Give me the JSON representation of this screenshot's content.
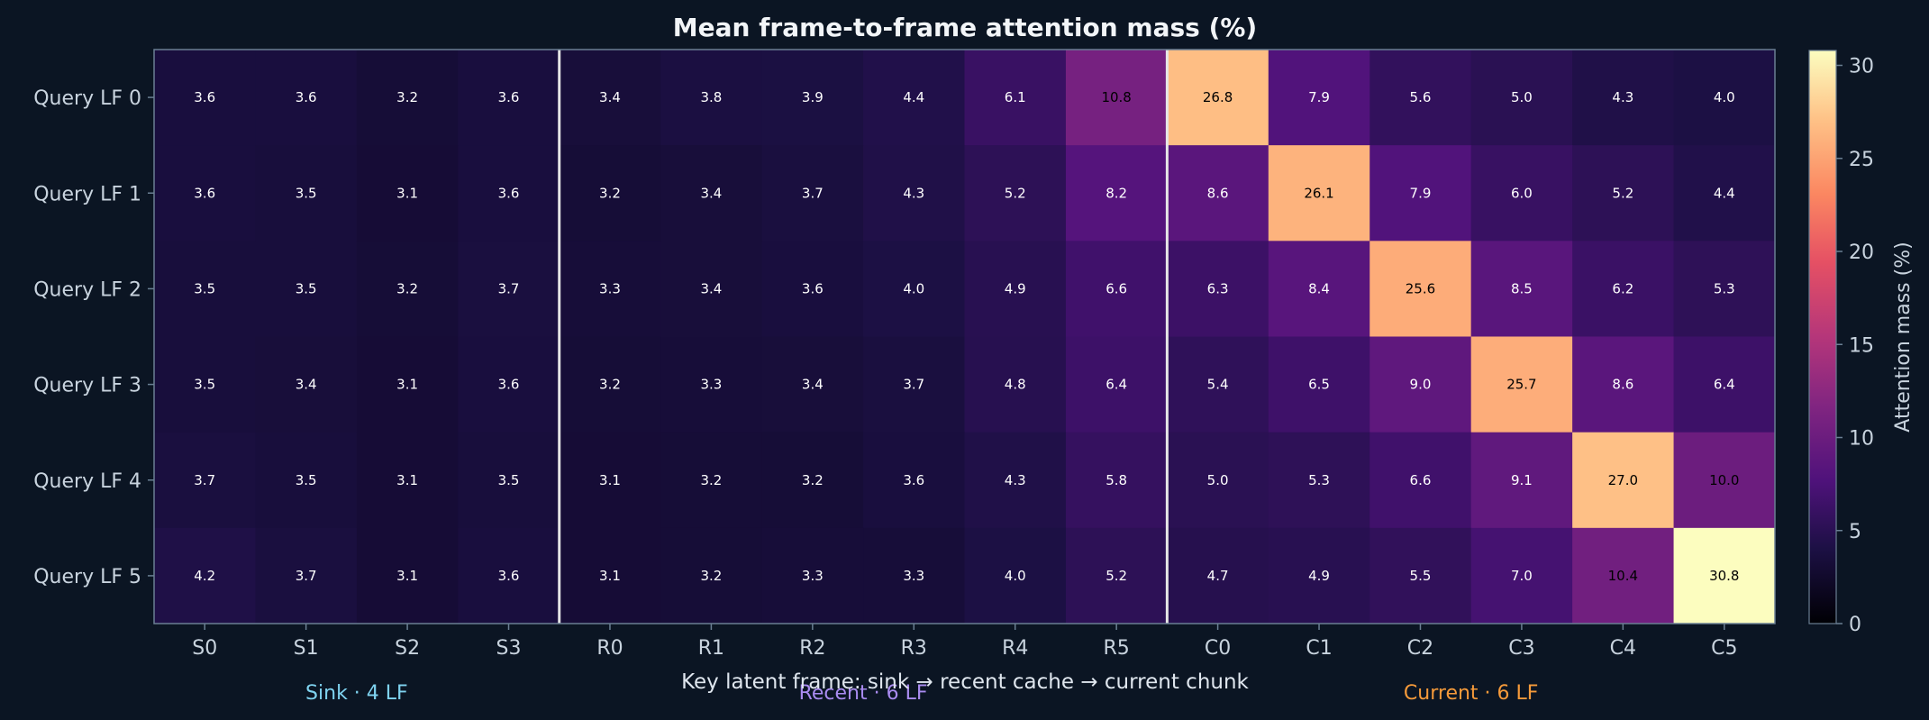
{
  "colors": {
    "background": "#0b1523",
    "text": "#c8d3de",
    "title": "#f2f5f8",
    "frame": "#6a7f93",
    "separator": "#e6e6e6",
    "sink_group": "#7fd3f0",
    "recent_group": "#a98bf0",
    "current_group": "#f59a3a"
  },
  "chart_data": {
    "type": "heatmap",
    "title": "Mean frame-to-frame attention mass (%)",
    "xlabel": "Key latent frame: sink → recent cache → current chunk",
    "ylabel": "",
    "colorbar_label": "Attention mass (%)",
    "colormap": "magma",
    "vmin": 0,
    "vmax": 30.8,
    "colorbar_ticks": [
      0,
      5,
      10,
      15,
      20,
      25,
      30
    ],
    "x_categories": [
      "S0",
      "S1",
      "S2",
      "S3",
      "R0",
      "R1",
      "R2",
      "R3",
      "R4",
      "R5",
      "C0",
      "C1",
      "C2",
      "C3",
      "C4",
      "C5"
    ],
    "y_categories": [
      "Query LF 0",
      "Query LF 1",
      "Query LF 2",
      "Query LF 3",
      "Query LF 4",
      "Query LF 5"
    ],
    "values": [
      [
        3.6,
        3.6,
        3.2,
        3.6,
        3.4,
        3.8,
        3.9,
        4.4,
        6.1,
        10.8,
        26.8,
        7.9,
        5.6,
        5.0,
        4.3,
        4.0
      ],
      [
        3.6,
        3.5,
        3.1,
        3.6,
        3.2,
        3.4,
        3.7,
        4.3,
        5.2,
        8.2,
        8.6,
        26.1,
        7.9,
        6.0,
        5.2,
        4.4
      ],
      [
        3.5,
        3.5,
        3.2,
        3.7,
        3.3,
        3.4,
        3.6,
        4.0,
        4.9,
        6.6,
        6.3,
        8.4,
        25.6,
        8.5,
        6.2,
        5.3
      ],
      [
        3.5,
        3.4,
        3.1,
        3.6,
        3.2,
        3.3,
        3.4,
        3.7,
        4.8,
        6.4,
        5.4,
        6.5,
        9.0,
        25.7,
        8.6,
        6.4
      ],
      [
        3.7,
        3.5,
        3.1,
        3.5,
        3.1,
        3.2,
        3.2,
        3.6,
        4.3,
        5.8,
        5.0,
        5.3,
        6.6,
        9.1,
        27.0,
        10.0
      ],
      [
        4.2,
        3.7,
        3.1,
        3.6,
        3.1,
        3.2,
        3.3,
        3.3,
        4.0,
        5.2,
        4.7,
        4.9,
        5.5,
        7.0,
        10.4,
        30.8
      ]
    ],
    "group_separators_after": [
      "S3",
      "R5"
    ],
    "groups": [
      {
        "label": "Sink · 4 LF",
        "start": 0,
        "count": 4,
        "color_key": "sink_group"
      },
      {
        "label": "Recent · 6 LF",
        "start": 4,
        "count": 6,
        "color_key": "recent_group"
      },
      {
        "label": "Current · 6 LF",
        "start": 10,
        "count": 6,
        "color_key": "current_group"
      }
    ]
  }
}
